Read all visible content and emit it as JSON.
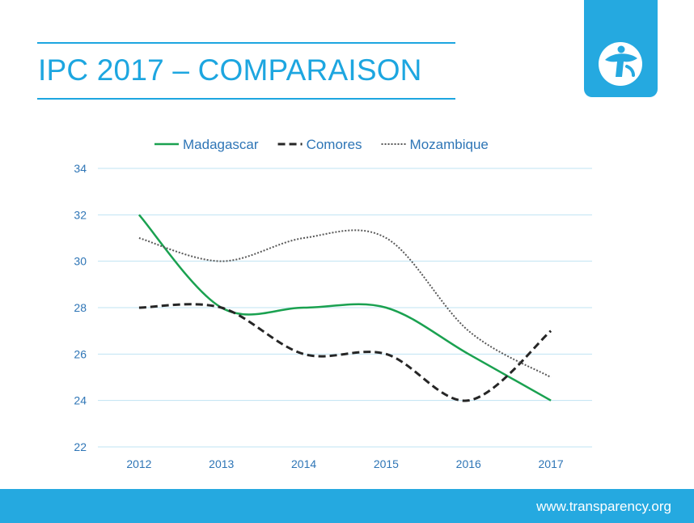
{
  "slide": {
    "title": "IPC 2017 – COMPARAISON",
    "footer_url": "www.transparency.org",
    "logo_icon": "transparency-international-globe-icon",
    "accent_color": "#1da6e0",
    "footer_color": "#25a9e0"
  },
  "chart_data": {
    "type": "line",
    "title": "",
    "xlabel": "",
    "ylabel": "",
    "categories": [
      "2012",
      "2013",
      "2014",
      "2015",
      "2016",
      "2017"
    ],
    "ylim": [
      22,
      34
    ],
    "yticks": [
      22,
      24,
      26,
      28,
      30,
      32,
      34
    ],
    "grid": true,
    "legend_position": "top",
    "smooth": true,
    "series": [
      {
        "name": "Madagascar",
        "values": [
          32,
          28,
          28,
          28,
          26,
          24
        ],
        "color": "#1aa150",
        "style": "solid"
      },
      {
        "name": "Comores",
        "values": [
          28,
          28,
          26,
          26,
          24,
          27
        ],
        "color": "#262626",
        "style": "dashed"
      },
      {
        "name": "Mozambique",
        "values": [
          31,
          30,
          31,
          31,
          27,
          25
        ],
        "color": "#595959",
        "style": "dotted"
      }
    ]
  }
}
